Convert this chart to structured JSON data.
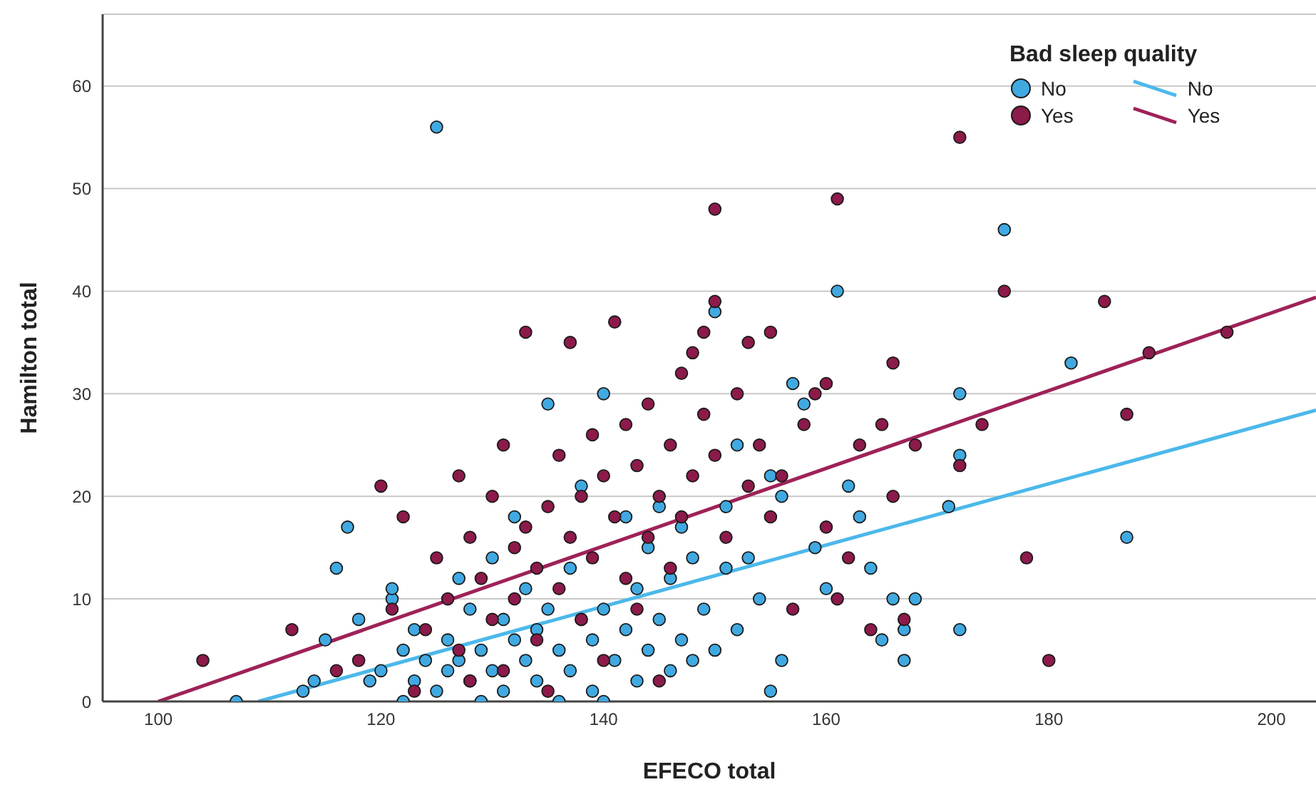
{
  "chart_data": {
    "type": "scatter",
    "xlabel": "EFECO total",
    "ylabel": "Hamilton total",
    "legend_title": "Bad sleep quality",
    "legend": "top right",
    "grid": "y",
    "marker": "circle",
    "xlim": [
      95,
      204
    ],
    "xticks": [
      100,
      120,
      140,
      160,
      180,
      200
    ],
    "ylim": [
      0,
      67
    ],
    "yticks": [
      0,
      10,
      20,
      30,
      40,
      50,
      60
    ],
    "series": [
      {
        "name": "No",
        "color": "#41a9e1",
        "x": [
          107,
          113,
          114,
          115,
          116,
          117,
          118,
          119,
          120,
          121,
          121,
          122,
          122,
          123,
          123,
          124,
          125,
          125,
          126,
          126,
          127,
          127,
          128,
          128,
          129,
          129,
          130,
          130,
          131,
          131,
          132,
          132,
          133,
          133,
          134,
          134,
          135,
          135,
          136,
          136,
          137,
          137,
          138,
          138,
          139,
          139,
          140,
          140,
          140,
          141,
          142,
          142,
          143,
          143,
          144,
          144,
          145,
          145,
          146,
          146,
          147,
          147,
          148,
          148,
          149,
          150,
          150,
          151,
          151,
          152,
          152,
          153,
          154,
          155,
          155,
          156,
          156,
          157,
          158,
          159,
          160,
          161,
          162,
          163,
          164,
          165,
          166,
          167,
          167,
          168,
          171,
          172,
          172,
          172,
          176,
          182,
          187
        ],
        "values": [
          0,
          1,
          2,
          6,
          13,
          17,
          8,
          2,
          3,
          10,
          11,
          0,
          5,
          2,
          7,
          4,
          1,
          56,
          3,
          6,
          12,
          4,
          2,
          9,
          5,
          0,
          14,
          3,
          8,
          1,
          6,
          18,
          4,
          11,
          2,
          7,
          29,
          9,
          0,
          5,
          13,
          3,
          21,
          8,
          1,
          6,
          30,
          0,
          9,
          4,
          18,
          7,
          11,
          2,
          15,
          5,
          19,
          8,
          3,
          12,
          17,
          6,
          4,
          14,
          9,
          38,
          5,
          13,
          19,
          7,
          25,
          14,
          10,
          1,
          22,
          4,
          20,
          31,
          29,
          15,
          11,
          40,
          21,
          18,
          13,
          6,
          10,
          4,
          7,
          10,
          19,
          30,
          24,
          7,
          46,
          33,
          16
        ]
      },
      {
        "name": "Yes",
        "color": "#8c1a4a",
        "x": [
          104,
          112,
          116,
          118,
          120,
          121,
          122,
          123,
          124,
          125,
          126,
          127,
          127,
          128,
          128,
          129,
          130,
          130,
          131,
          131,
          132,
          132,
          133,
          133,
          134,
          134,
          135,
          135,
          136,
          136,
          137,
          137,
          138,
          138,
          139,
          139,
          140,
          140,
          141,
          141,
          142,
          142,
          143,
          143,
          144,
          144,
          145,
          145,
          146,
          146,
          147,
          147,
          148,
          148,
          149,
          149,
          150,
          150,
          150,
          151,
          152,
          153,
          153,
          154,
          155,
          155,
          156,
          157,
          158,
          159,
          160,
          160,
          161,
          161,
          162,
          163,
          164,
          165,
          166,
          166,
          167,
          168,
          172,
          172,
          174,
          176,
          178,
          180,
          185,
          187,
          189,
          196
        ],
        "values": [
          4,
          7,
          3,
          4,
          21,
          9,
          18,
          1,
          7,
          14,
          10,
          22,
          5,
          16,
          2,
          12,
          20,
          8,
          25,
          3,
          15,
          10,
          36,
          17,
          6,
          13,
          19,
          1,
          24,
          11,
          35,
          16,
          8,
          20,
          14,
          26,
          22,
          4,
          37,
          18,
          12,
          27,
          23,
          9,
          16,
          29,
          20,
          2,
          25,
          13,
          32,
          18,
          34,
          22,
          36,
          28,
          48,
          39,
          24,
          16,
          30,
          35,
          21,
          25,
          36,
          18,
          22,
          9,
          27,
          30,
          31,
          17,
          49,
          10,
          14,
          25,
          7,
          27,
          33,
          20,
          8,
          25,
          55,
          23,
          27,
          40,
          14,
          4,
          39,
          28,
          34,
          36
        ]
      },
      {
        "name": "No",
        "type": "line",
        "marker": "none",
        "color": "#4cb8ea",
        "x": [
          109,
          204
        ],
        "values": [
          0,
          28.4
        ]
      },
      {
        "name": "Yes",
        "type": "line",
        "marker": "none",
        "color": "#9e2257",
        "x": [
          100,
          204
        ],
        "values": [
          0,
          39.4
        ]
      }
    ]
  }
}
